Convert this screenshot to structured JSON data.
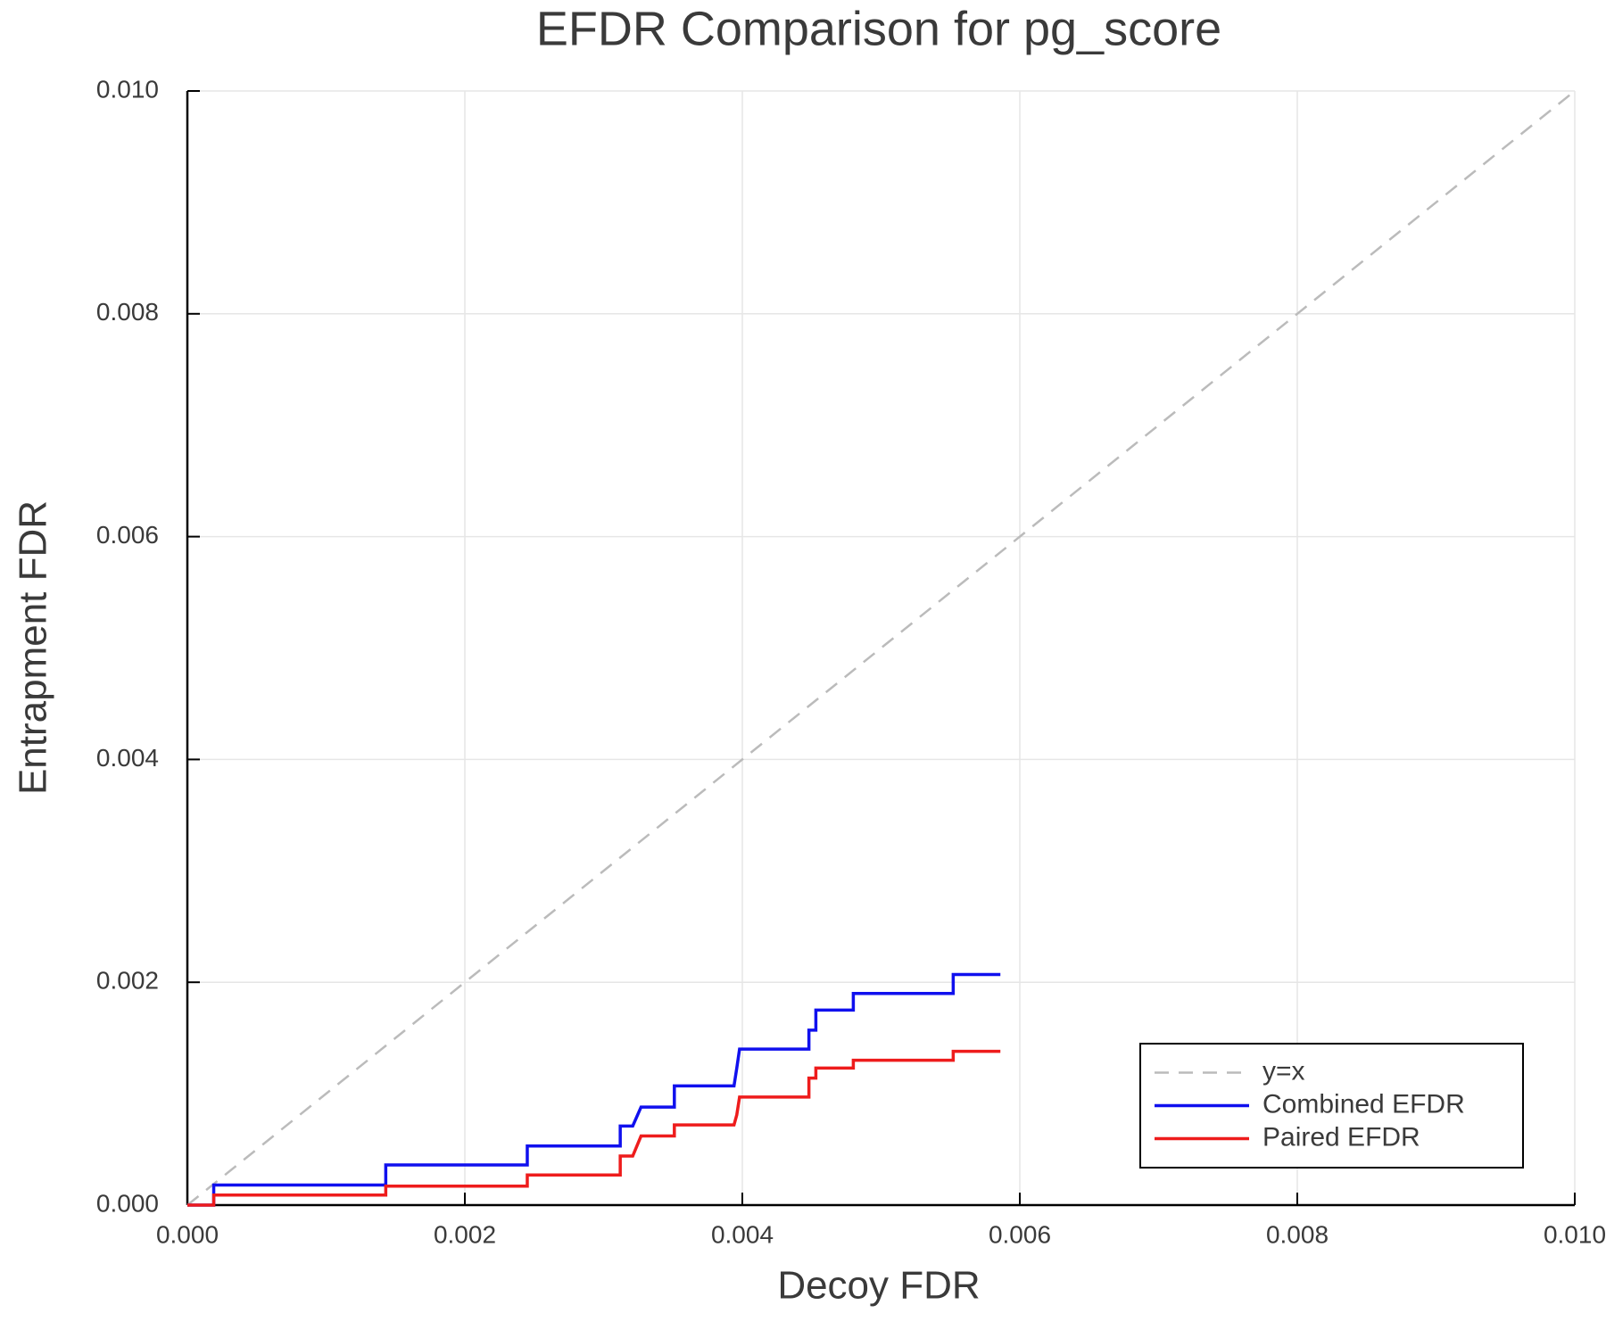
{
  "chart_data": {
    "type": "line",
    "title": "EFDR Comparison for pg_score",
    "xlabel": "Decoy FDR",
    "ylabel": "Entrapment FDR",
    "xlim": [
      0,
      0.01
    ],
    "ylim": [
      0,
      0.01
    ],
    "xticks": [
      {
        "value": 0,
        "label": "0.000"
      },
      {
        "value": 0.002,
        "label": "0.002"
      },
      {
        "value": 0.004,
        "label": "0.004"
      },
      {
        "value": 0.006,
        "label": "0.006"
      },
      {
        "value": 0.008,
        "label": "0.008"
      },
      {
        "value": 0.01,
        "label": "0.010"
      }
    ],
    "yticks": [
      {
        "value": 0,
        "label": "0.000"
      },
      {
        "value": 0.002,
        "label": "0.002"
      },
      {
        "value": 0.004,
        "label": "0.004"
      },
      {
        "value": 0.006,
        "label": "0.006"
      },
      {
        "value": 0.008,
        "label": "0.008"
      },
      {
        "value": 0.01,
        "label": "0.010"
      }
    ],
    "grid": true,
    "legend": "lower right",
    "series": [
      {
        "name": "y=x",
        "color": "#bbbbbb",
        "style": "dashed",
        "x": [
          0,
          0.01
        ],
        "values": [
          0,
          0.01
        ]
      },
      {
        "name": "Combined EFDR",
        "color": "#1010ee",
        "style": "solid",
        "x": [
          0,
          0.00019,
          0.00019,
          0.00143,
          0.00143,
          0.00245,
          0.00245,
          0.00312,
          0.00312,
          0.00321,
          0.00327,
          0.00351,
          0.00351,
          0.00394,
          0.00396,
          0.00398,
          0.00448,
          0.00448,
          0.00453,
          0.00453,
          0.0048,
          0.0048,
          0.00552,
          0.00552,
          0.00586
        ],
        "values": [
          0,
          0,
          0.00018,
          0.00018,
          0.00036,
          0.00036,
          0.00053,
          0.00053,
          0.00071,
          0.00071,
          0.00088,
          0.00088,
          0.00107,
          0.00107,
          0.00123,
          0.0014,
          0.0014,
          0.00157,
          0.00157,
          0.00175,
          0.00175,
          0.0019,
          0.0019,
          0.00207,
          0.00207
        ]
      },
      {
        "name": "Paired EFDR",
        "color": "#ee1c1c",
        "style": "solid",
        "x": [
          0,
          0.00019,
          0.00019,
          0.00143,
          0.00143,
          0.00245,
          0.00245,
          0.00312,
          0.00312,
          0.00321,
          0.00327,
          0.00351,
          0.00351,
          0.00394,
          0.00396,
          0.00398,
          0.00448,
          0.00448,
          0.00453,
          0.00453,
          0.0048,
          0.0048,
          0.00552,
          0.00552,
          0.00586
        ],
        "values": [
          0,
          0,
          9e-05,
          9e-05,
          0.00017,
          0.00017,
          0.00027,
          0.00027,
          0.00044,
          0.00044,
          0.00062,
          0.00062,
          0.00072,
          0.00072,
          0.00081,
          0.00097,
          0.00097,
          0.00114,
          0.00114,
          0.00123,
          0.00123,
          0.0013,
          0.0013,
          0.00138,
          0.00138
        ]
      }
    ]
  }
}
